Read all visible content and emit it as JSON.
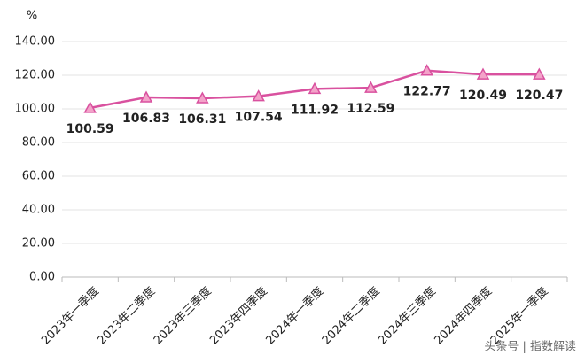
{
  "chart_data": {
    "type": "line",
    "y_label": "%",
    "categories": [
      "2023年一季度",
      "2023年二季度",
      "2023年三季度",
      "2023年四季度",
      "2024年一季度",
      "2024年二季度",
      "2024年三季度",
      "2024年四季度",
      "2025年一季度"
    ],
    "series": [
      {
        "color": "#d9519f",
        "marker_fill": "#f3a3c9",
        "values": [
          100.59,
          106.83,
          106.31,
          107.54,
          111.92,
          112.59,
          122.77,
          120.49,
          120.47
        ]
      }
    ],
    "ylim": [
      0,
      140
    ],
    "yticks": [
      {
        "value": 0,
        "label": "0.00"
      },
      {
        "value": 20,
        "label": "20.00"
      },
      {
        "value": 40,
        "label": "40.00"
      },
      {
        "value": 60,
        "label": "60.00"
      },
      {
        "value": 80,
        "label": "80.00"
      },
      {
        "value": 100,
        "label": "100.00"
      },
      {
        "value": 120,
        "label": "120.00"
      },
      {
        "value": 140,
        "label": "140.00"
      }
    ],
    "grid": true,
    "watermark": "头条号 | 指数解读"
  }
}
